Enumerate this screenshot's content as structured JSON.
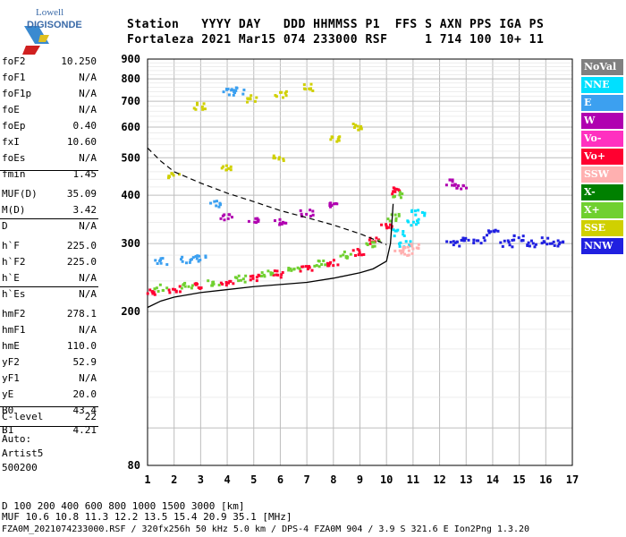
{
  "logo": {
    "line1": "Lowell",
    "line2": "DIGISONDE"
  },
  "header": {
    "row1": "Station   YYYY DAY   DDD HHMMSS P1  FFS S AXN PPS IGA PS",
    "row2": "Fortaleza 2021 Mar15 074 233000 RSF     1 714 100 10+ 11"
  },
  "params": [
    {
      "k": "foF2",
      "v": "10.250"
    },
    {
      "k": "foF1",
      "v": "N/A"
    },
    {
      "k": "foF1p",
      "v": "N/A"
    },
    {
      "k": "foE",
      "v": "N/A"
    },
    {
      "k": "foEp",
      "v": "0.40"
    },
    {
      "k": "fxI",
      "v": "10.60"
    },
    {
      "k": "foEs",
      "v": "N/A"
    },
    {
      "k": "fmin",
      "v": "1.45"
    },
    {
      "k": "MUF(D)",
      "v": "35.09"
    },
    {
      "k": "M(D)",
      "v": "3.42"
    },
    {
      "k": "D",
      "v": "N/A"
    },
    {
      "k": "h`F",
      "v": "225.0"
    },
    {
      "k": "h`F2",
      "v": "225.0"
    },
    {
      "k": "h`E",
      "v": "N/A"
    },
    {
      "k": "h`Es",
      "v": "N/A"
    },
    {
      "k": "hmF2",
      "v": "278.1"
    },
    {
      "k": "hmF1",
      "v": "N/A"
    },
    {
      "k": "hmE",
      "v": "110.0"
    },
    {
      "k": "yF2",
      "v": "52.9"
    },
    {
      "k": "yF1",
      "v": "N/A"
    },
    {
      "k": "yE",
      "v": "20.0"
    },
    {
      "k": "B0",
      "v": "43.4"
    },
    {
      "k": "B1",
      "v": "4.21"
    },
    {
      "k": "C-level",
      "v": "22"
    }
  ],
  "auto": {
    "l1": "Auto:",
    "l2": "Artist5",
    "l3": "500200"
  },
  "legend": [
    {
      "label": "NoVal",
      "color": "#808080"
    },
    {
      "label": "NNE",
      "color": "#00e0ff"
    },
    {
      "label": "E",
      "color": "#3ca0f0"
    },
    {
      "label": "W",
      "color": "#b000b0"
    },
    {
      "label": "Vo-",
      "color": "#ff30c0"
    },
    {
      "label": "Vo+",
      "color": "#ff0030"
    },
    {
      "label": "SSW",
      "color": "#ffb0b0"
    },
    {
      "label": "X-",
      "color": "#008000"
    },
    {
      "label": "X+",
      "color": "#70d030"
    },
    {
      "label": "SSE",
      "color": "#d0d000"
    },
    {
      "label": "NNW",
      "color": "#2020e0"
    }
  ],
  "footer": {
    "d_row": "D     100  200  400  600  800 1000 1500 3000 [km]",
    "muf_row": "MUF  10.6 10.8 11.3 12.2 13.5 15.4 20.9 35.1 [MHz]",
    "file_row": "FZA0M_2021074233000.RSF / 320fx256h 50 kHz 5.0 km / DPS-4 FZA0M 904 / 3.9 S 321.6 E   Ion2Png 1.3.20"
  },
  "chart_data": {
    "type": "scatter",
    "xlim": [
      1,
      17
    ],
    "ylim": [
      80,
      900
    ],
    "y_scale": "log",
    "xticks": [
      1,
      2,
      3,
      4,
      5,
      6,
      7,
      8,
      9,
      10,
      11,
      12,
      13,
      14,
      15,
      16,
      17
    ],
    "yticks": [
      80,
      200,
      300,
      400,
      500,
      600,
      700,
      800,
      900
    ],
    "grid": true,
    "series": [
      {
        "name": "Vo+",
        "points": [
          [
            1.2,
            225
          ],
          [
            2,
            228
          ],
          [
            3,
            232
          ],
          [
            4,
            238
          ],
          [
            5,
            244
          ],
          [
            6,
            250
          ],
          [
            7,
            258
          ],
          [
            8,
            268
          ],
          [
            9,
            285
          ],
          [
            9.6,
            305
          ],
          [
            10,
            330
          ],
          [
            10.25,
            410
          ]
        ]
      },
      {
        "name": "X+",
        "points": [
          [
            1.5,
            230
          ],
          [
            2.5,
            233
          ],
          [
            3.5,
            238
          ],
          [
            4.5,
            243
          ],
          [
            5.5,
            250
          ],
          [
            6.5,
            257
          ],
          [
            7.5,
            266
          ],
          [
            8.5,
            280
          ],
          [
            9.5,
            300
          ],
          [
            10.3,
            350
          ],
          [
            10.5,
            400
          ]
        ]
      },
      {
        "name": "SSE",
        "points": [
          [
            2,
            450
          ],
          [
            4,
            470
          ],
          [
            6,
            500
          ],
          [
            8,
            560
          ],
          [
            9,
            600
          ],
          [
            3,
            680
          ],
          [
            5,
            710
          ],
          [
            6,
            730
          ],
          [
            7,
            760
          ]
        ]
      },
      {
        "name": "NNW",
        "points": [
          [
            12.5,
            300
          ],
          [
            13,
            310
          ],
          [
            13.5,
            305
          ],
          [
            14,
            320
          ],
          [
            14.5,
            300
          ],
          [
            15,
            310
          ],
          [
            15.5,
            300
          ],
          [
            16,
            305
          ],
          [
            16.5,
            300
          ]
        ]
      },
      {
        "name": "W",
        "points": [
          [
            4,
            350
          ],
          [
            5,
            345
          ],
          [
            6,
            340
          ],
          [
            7,
            360
          ],
          [
            8,
            380
          ],
          [
            12.5,
            430
          ],
          [
            12.8,
            420
          ]
        ]
      },
      {
        "name": "E",
        "points": [
          [
            1.5,
            270
          ],
          [
            2.5,
            272
          ],
          [
            3,
            275
          ],
          [
            4,
            740
          ],
          [
            4.5,
            745
          ],
          [
            3.5,
            380
          ]
        ]
      },
      {
        "name": "NNE",
        "points": [
          [
            10.5,
            320
          ],
          [
            11,
            340
          ],
          [
            10.7,
            300
          ],
          [
            11.2,
            360
          ]
        ]
      },
      {
        "name": "SSW",
        "points": [
          [
            10.5,
            290
          ],
          [
            11,
            295
          ],
          [
            10.8,
            285
          ]
        ]
      }
    ],
    "model_profile": {
      "f": [
        1.0,
        1.5,
        2,
        3,
        4,
        5,
        6,
        7,
        8,
        9,
        9.5,
        10,
        10.15,
        10.25
      ],
      "h": [
        205,
        213,
        218,
        224,
        228,
        232,
        235,
        238,
        244,
        252,
        258,
        270,
        300,
        380
      ]
    },
    "muf_curve": {
      "f": [
        1.0,
        1.5,
        2,
        3,
        4,
        5,
        6,
        7,
        8,
        9,
        9.5,
        10
      ],
      "h": [
        530,
        490,
        460,
        430,
        405,
        385,
        365,
        350,
        335,
        318,
        308,
        298
      ]
    }
  }
}
